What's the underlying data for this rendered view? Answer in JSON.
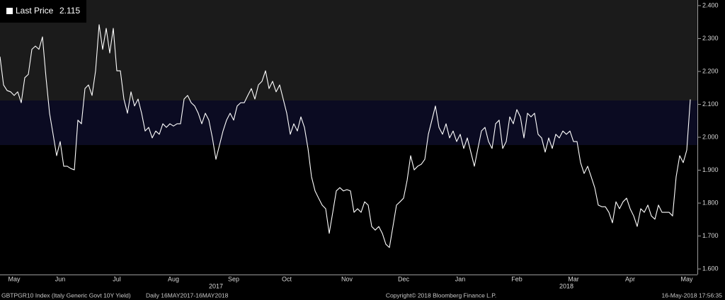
{
  "chart_data": {
    "type": "line",
    "series": [
      {
        "name": "Last Price",
        "color": "#ffffff",
        "values": [
          2.245,
          2.159,
          2.142,
          2.138,
          2.127,
          2.138,
          2.105,
          2.181,
          2.191,
          2.267,
          2.277,
          2.267,
          2.305,
          2.181,
          2.073,
          2.009,
          1.944,
          1.987,
          1.912,
          1.912,
          1.905,
          1.901,
          2.052,
          2.041,
          2.148,
          2.159,
          2.127,
          2.202,
          2.342,
          2.267,
          2.331,
          2.256,
          2.331,
          2.202,
          2.202,
          2.116,
          2.073,
          2.138,
          2.095,
          2.116,
          2.073,
          2.019,
          2.03,
          1.998,
          2.019,
          2.009,
          2.041,
          2.03,
          2.041,
          2.034,
          2.041,
          2.041,
          2.116,
          2.127,
          2.105,
          2.095,
          2.073,
          2.041,
          2.073,
          2.052,
          1.998,
          1.933,
          1.976,
          2.019,
          2.052,
          2.073,
          2.052,
          2.095,
          2.105,
          2.105,
          2.127,
          2.148,
          2.116,
          2.159,
          2.17,
          2.202,
          2.148,
          2.17,
          2.138,
          2.159,
          2.116,
          2.073,
          2.009,
          2.041,
          2.019,
          2.062,
          2.03,
          1.966,
          1.88,
          1.837,
          1.815,
          1.794,
          1.783,
          1.708,
          1.772,
          1.837,
          1.847,
          1.837,
          1.841,
          1.837,
          1.772,
          1.783,
          1.772,
          1.804,
          1.794,
          1.729,
          1.718,
          1.729,
          1.708,
          1.675,
          1.665,
          1.729,
          1.794,
          1.804,
          1.815,
          1.869,
          1.944,
          1.901,
          1.912,
          1.918,
          1.933,
          2.009,
          2.052,
          2.095,
          2.03,
          2.009,
          2.041,
          1.998,
          2.019,
          1.987,
          2.009,
          1.966,
          1.998,
          1.955,
          1.912,
          1.966,
          2.019,
          2.03,
          1.987,
          1.966,
          2.041,
          2.052,
          1.966,
          1.987,
          2.062,
          2.041,
          2.084,
          2.062,
          1.998,
          2.073,
          2.062,
          2.073,
          2.009,
          1.998,
          1.955,
          1.998,
          1.966,
          2.009,
          1.998,
          2.019,
          2.009,
          2.019,
          1.987,
          1.987,
          1.923,
          1.89,
          1.912,
          1.88,
          1.847,
          1.794,
          1.789,
          1.789,
          1.772,
          1.74,
          1.804,
          1.783,
          1.804,
          1.815,
          1.783,
          1.761,
          1.729,
          1.783,
          1.772,
          1.794,
          1.761,
          1.751,
          1.794,
          1.772,
          1.772,
          1.772,
          1.761,
          1.88,
          1.944,
          1.923,
          1.961,
          2.115
        ]
      }
    ],
    "categories": [
      null,
      null,
      null,
      null,
      "May",
      null,
      null,
      null,
      null,
      null,
      null,
      null,
      null,
      null,
      null,
      null,
      null,
      "Jun",
      null,
      null,
      null,
      null,
      null,
      null,
      null,
      null,
      null,
      null,
      null,
      null,
      null,
      null,
      null,
      "Jul",
      null,
      null,
      null,
      null,
      null,
      null,
      null,
      null,
      null,
      null,
      null,
      null,
      null,
      null,
      null,
      "Aug",
      null,
      null,
      null,
      null,
      null,
      null,
      null,
      null,
      null,
      null,
      null,
      null,
      null,
      null,
      null,
      null,
      "Sep",
      null,
      null,
      null,
      null,
      null,
      null,
      null,
      null,
      null,
      null,
      null,
      null,
      null,
      null,
      "Oct",
      null,
      null,
      null,
      null,
      null,
      null,
      null,
      null,
      null,
      null,
      null,
      null,
      null,
      null,
      null,
      null,
      "Nov",
      null,
      null,
      null,
      null,
      null,
      null,
      null,
      null,
      null,
      null,
      null,
      null,
      null,
      null,
      null,
      "Dec",
      null,
      null,
      null,
      null,
      null,
      null,
      null,
      null,
      null,
      null,
      null,
      null,
      null,
      null,
      null,
      "Jan",
      null,
      null,
      null,
      null,
      null,
      null,
      null,
      null,
      null,
      null,
      null,
      null,
      null,
      null,
      null,
      "Feb",
      null,
      null,
      null,
      null,
      null,
      null,
      null,
      null,
      null,
      null,
      null,
      null,
      null,
      null,
      null,
      "Mar",
      null,
      null,
      null,
      null,
      null,
      null,
      null,
      null,
      null,
      null,
      null,
      null,
      null,
      null,
      null,
      "Apr",
      null,
      null,
      null,
      null,
      null,
      null,
      null,
      null,
      null,
      null,
      null,
      null,
      null,
      null,
      null,
      "May",
      null
    ],
    "year_labels": [
      "2017",
      "2018"
    ],
    "ylim": [
      1.583,
      2.417
    ],
    "yticks": [
      {
        "value": 1.6,
        "label": "1.600"
      },
      {
        "value": 1.7,
        "label": "1.700"
      },
      {
        "value": 1.8,
        "label": "1.800"
      },
      {
        "value": 1.9,
        "label": "1.900"
      },
      {
        "value": 2.0,
        "label": "2.000"
      },
      {
        "value": 2.1,
        "label": "2.100"
      },
      {
        "value": 2.2,
        "label": "2.200"
      },
      {
        "value": 2.3,
        "label": "2.300"
      },
      {
        "value": 2.4,
        "label": "2.400"
      }
    ],
    "legend": "top-left",
    "footer": {
      "index": "GBTPGR10 Index (Italy Generic Govt 10Y Yield)",
      "period": "Daily 16MAY2017-16MAY2018",
      "copyright": "Copyright© 2018 Bloomberg Finance L.P.",
      "timestamp": "16-May-2018 17:56:35"
    }
  }
}
